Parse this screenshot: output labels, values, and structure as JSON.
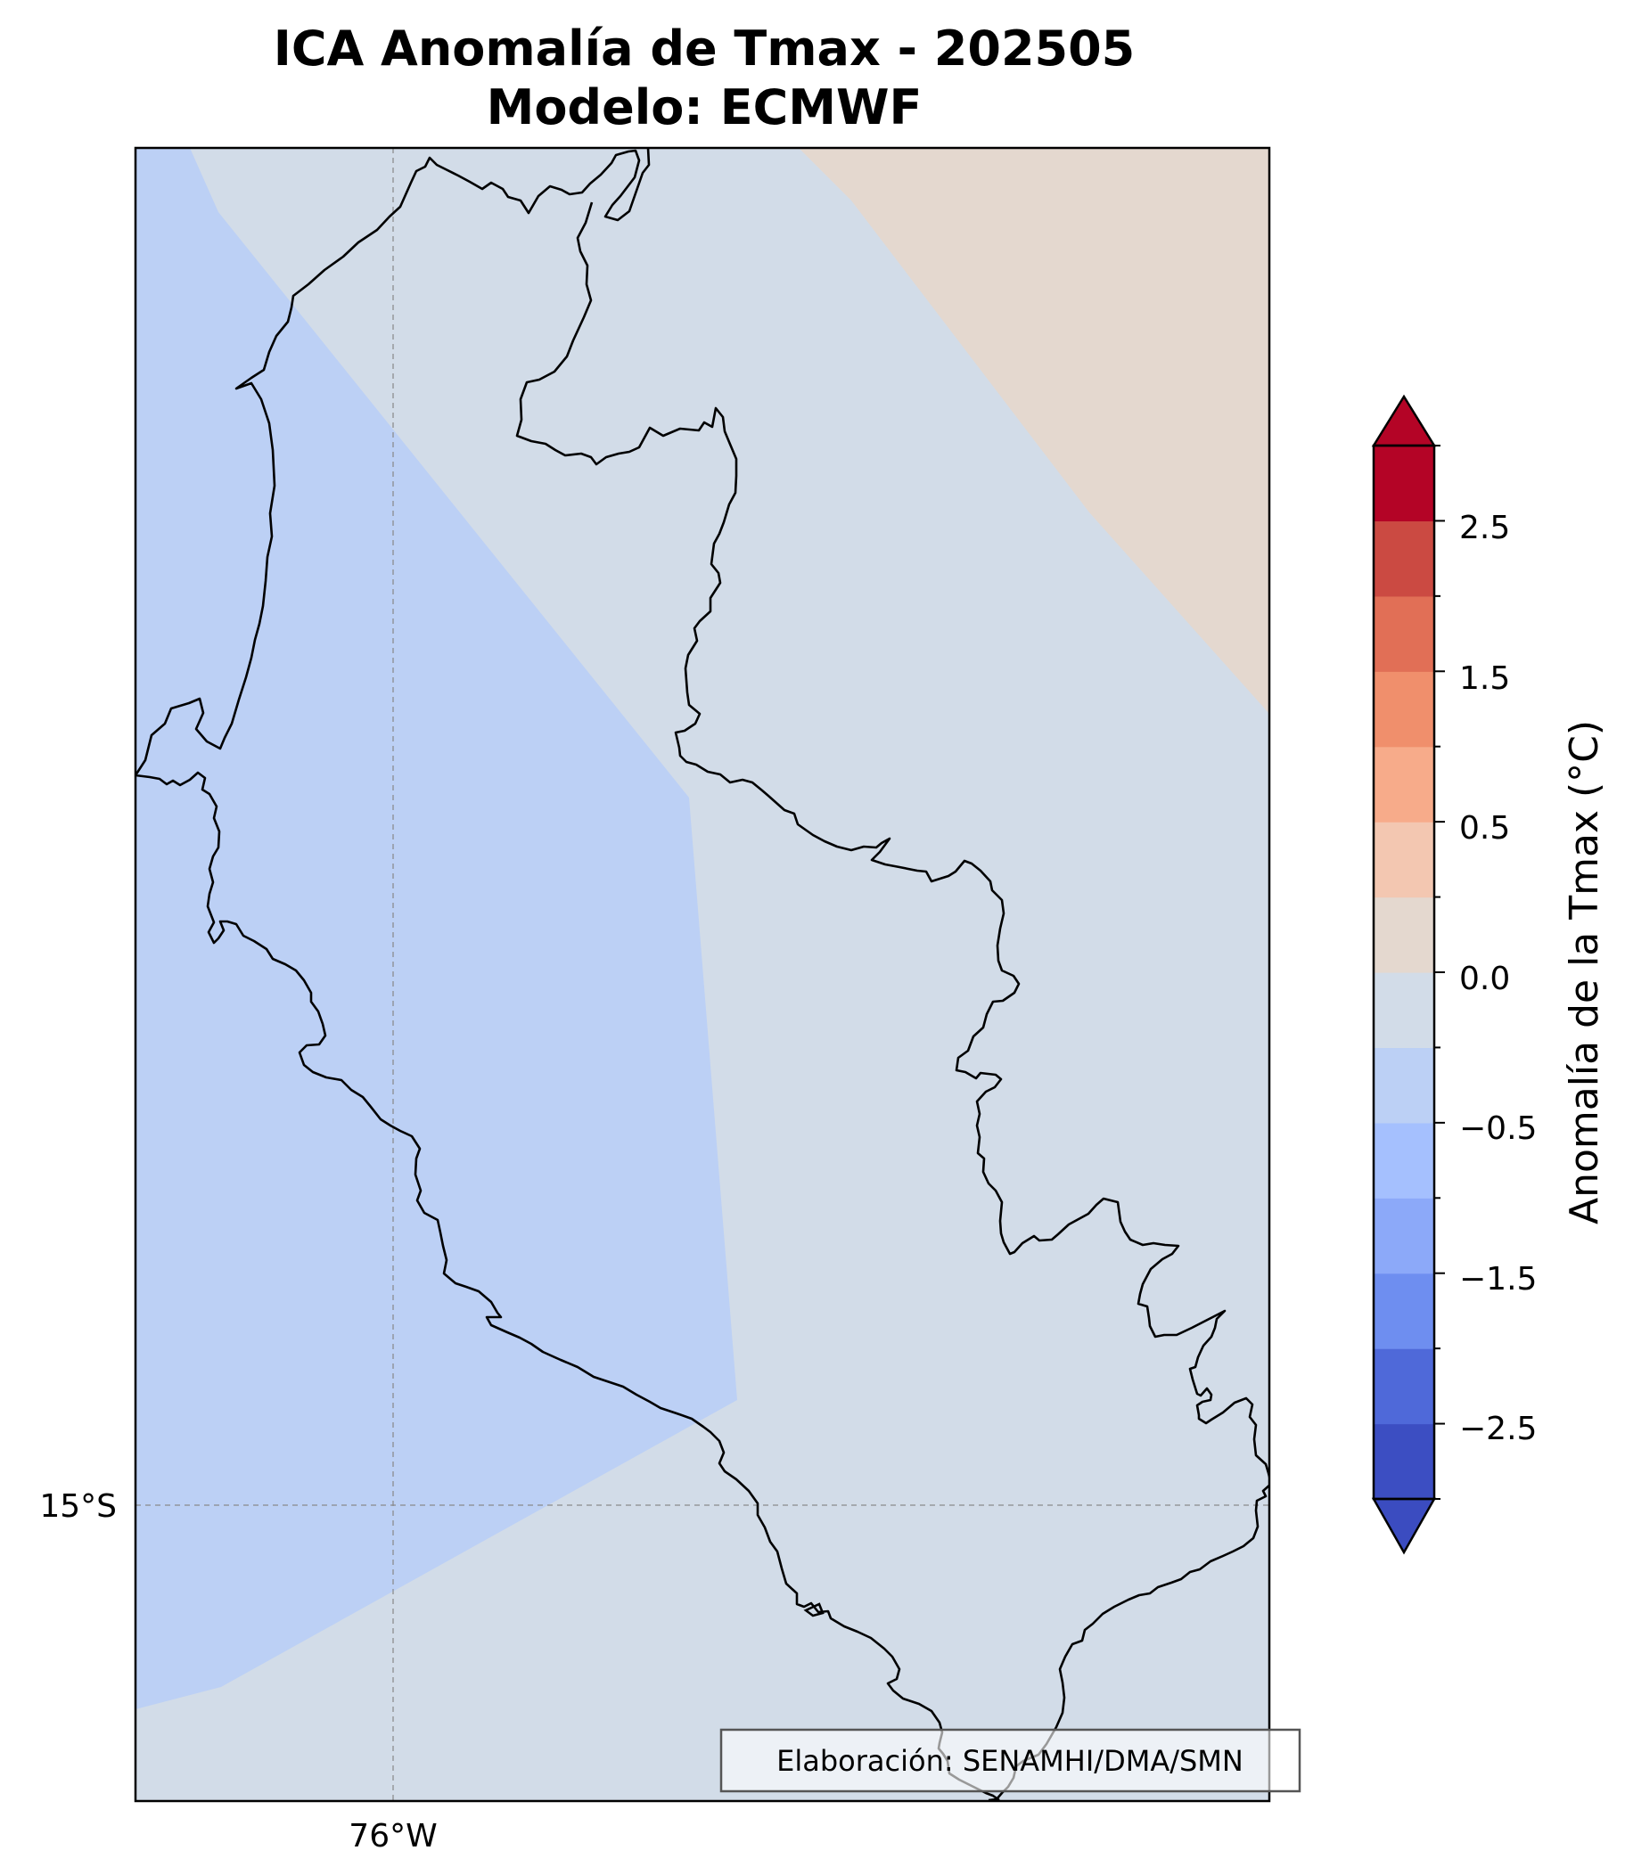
{
  "title_line1": "ICA Anomalía de Tmax - 202505",
  "title_line2": "Modelo: ECMWF",
  "map": {
    "lon_tick_label": "76°W",
    "lat_tick_label": "15°S",
    "credit": "Elaboración: SENAMHI/DMA/SMN",
    "fill_colors": {
      "negative": "#bcd0f5",
      "near_zero_negative": "#d2dce8",
      "near_zero_positive": "#e4d8cf"
    }
  },
  "colorbar": {
    "label": "Anomalía de la Tmax (°C)",
    "tick_labels": [
      "2.5",
      "1.5",
      "0.5",
      "0.0",
      "−0.5",
      "−1.5",
      "−2.5"
    ],
    "extend": "both",
    "colors": [
      "#3c4ec2",
      "#4f69d9",
      "#6e8ef0",
      "#8ca9f9",
      "#a5c0fe",
      "#bcd0f5",
      "#d2dce8",
      "#e4d8cf",
      "#f3c7b1",
      "#f7ab8a",
      "#f08f6c",
      "#e16f56",
      "#cb4a42",
      "#b40426"
    ],
    "upper_extend_color": "#b40426",
    "lower_extend_color": "#3b4cc0"
  }
}
